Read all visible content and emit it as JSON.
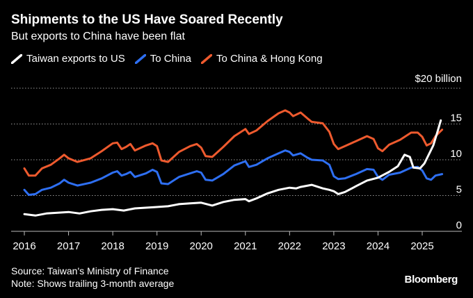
{
  "header": {
    "title": "Shipments to the US Have Soared Recently",
    "subtitle": "But exports to China have been flat"
  },
  "footer": {
    "source": "Source: Taiwan's Ministry of Finance",
    "note": "Note: Shows trailing 3-month average",
    "brand": "Bloomberg"
  },
  "chart_data": {
    "type": "line",
    "unit_label": "$20 billion",
    "ylim": [
      0,
      20
    ],
    "yticks": [
      {
        "value": 20,
        "label": "$20 billion"
      },
      {
        "value": 15,
        "label": "15"
      },
      {
        "value": 10,
        "label": "10"
      },
      {
        "value": 5,
        "label": "5"
      },
      {
        "value": 0,
        "label": "0"
      }
    ],
    "xlim": [
      2016,
      2025.9
    ],
    "xticks": [
      {
        "value": 2016,
        "label": "2016"
      },
      {
        "value": 2017,
        "label": "2017"
      },
      {
        "value": 2018,
        "label": "2018"
      },
      {
        "value": 2019,
        "label": "2019"
      },
      {
        "value": 2020,
        "label": "2020"
      },
      {
        "value": 2021,
        "label": "2021"
      },
      {
        "value": 2022,
        "label": "2022"
      },
      {
        "value": 2023,
        "label": "2023"
      },
      {
        "value": 2024,
        "label": "2024"
      },
      {
        "value": 2025,
        "label": "2025"
      }
    ],
    "grid": true,
    "legend_position": "top-left",
    "series": [
      {
        "name": "Taiwan exports to US",
        "color": "#ffffff",
        "points": [
          [
            2016.0,
            2.4
          ],
          [
            2016.25,
            2.2
          ],
          [
            2016.5,
            2.5
          ],
          [
            2016.75,
            2.6
          ],
          [
            2017.0,
            2.7
          ],
          [
            2017.25,
            2.5
          ],
          [
            2017.5,
            2.8
          ],
          [
            2017.75,
            3.0
          ],
          [
            2018.0,
            3.1
          ],
          [
            2018.25,
            2.9
          ],
          [
            2018.5,
            3.2
          ],
          [
            2018.75,
            3.3
          ],
          [
            2019.0,
            3.4
          ],
          [
            2019.25,
            3.5
          ],
          [
            2019.5,
            3.8
          ],
          [
            2019.75,
            3.9
          ],
          [
            2020.0,
            4.0
          ],
          [
            2020.25,
            3.6
          ],
          [
            2020.5,
            4.1
          ],
          [
            2020.75,
            4.4
          ],
          [
            2021.0,
            4.5
          ],
          [
            2021.08,
            4.2
          ],
          [
            2021.25,
            4.6
          ],
          [
            2021.5,
            5.3
          ],
          [
            2021.75,
            5.8
          ],
          [
            2022.0,
            6.1
          ],
          [
            2022.15,
            6.0
          ],
          [
            2022.25,
            6.2
          ],
          [
            2022.5,
            6.5
          ],
          [
            2022.75,
            6.0
          ],
          [
            2022.9,
            5.8
          ],
          [
            2023.0,
            5.6
          ],
          [
            2023.1,
            5.2
          ],
          [
            2023.25,
            5.5
          ],
          [
            2023.5,
            6.3
          ],
          [
            2023.75,
            7.1
          ],
          [
            2024.0,
            7.5
          ],
          [
            2024.25,
            8.3
          ],
          [
            2024.45,
            9.1
          ],
          [
            2024.6,
            10.7
          ],
          [
            2024.72,
            10.4
          ],
          [
            2024.8,
            8.9
          ],
          [
            2024.95,
            8.8
          ],
          [
            2025.05,
            9.5
          ],
          [
            2025.25,
            12.0
          ],
          [
            2025.35,
            14.0
          ],
          [
            2025.42,
            15.5
          ]
        ]
      },
      {
        "name": "To China",
        "color": "#2e6ff2",
        "points": [
          [
            2016.0,
            5.8
          ],
          [
            2016.1,
            5.1
          ],
          [
            2016.25,
            5.2
          ],
          [
            2016.4,
            5.8
          ],
          [
            2016.6,
            6.1
          ],
          [
            2016.8,
            6.7
          ],
          [
            2016.9,
            7.2
          ],
          [
            2017.0,
            6.8
          ],
          [
            2017.2,
            6.4
          ],
          [
            2017.5,
            6.8
          ],
          [
            2017.75,
            7.4
          ],
          [
            2018.0,
            8.2
          ],
          [
            2018.1,
            8.4
          ],
          [
            2018.2,
            7.8
          ],
          [
            2018.3,
            8.0
          ],
          [
            2018.4,
            8.3
          ],
          [
            2018.5,
            7.6
          ],
          [
            2018.75,
            8.1
          ],
          [
            2018.9,
            8.6
          ],
          [
            2019.0,
            8.3
          ],
          [
            2019.1,
            6.7
          ],
          [
            2019.25,
            6.6
          ],
          [
            2019.5,
            7.6
          ],
          [
            2019.75,
            8.1
          ],
          [
            2019.9,
            8.4
          ],
          [
            2020.0,
            8.2
          ],
          [
            2020.1,
            7.2
          ],
          [
            2020.25,
            7.1
          ],
          [
            2020.5,
            8.0
          ],
          [
            2020.75,
            9.2
          ],
          [
            2021.0,
            9.8
          ],
          [
            2021.08,
            9.0
          ],
          [
            2021.25,
            9.3
          ],
          [
            2021.5,
            10.2
          ],
          [
            2021.75,
            10.9
          ],
          [
            2021.9,
            11.3
          ],
          [
            2022.0,
            11.1
          ],
          [
            2022.08,
            10.6
          ],
          [
            2022.25,
            10.9
          ],
          [
            2022.4,
            10.3
          ],
          [
            2022.5,
            10.0
          ],
          [
            2022.75,
            9.9
          ],
          [
            2022.9,
            9.3
          ],
          [
            2023.0,
            7.7
          ],
          [
            2023.1,
            7.3
          ],
          [
            2023.25,
            7.4
          ],
          [
            2023.5,
            8.0
          ],
          [
            2023.75,
            8.7
          ],
          [
            2023.9,
            8.6
          ],
          [
            2024.0,
            7.6
          ],
          [
            2024.1,
            7.2
          ],
          [
            2024.25,
            7.9
          ],
          [
            2024.5,
            8.2
          ],
          [
            2024.75,
            8.9
          ],
          [
            2024.9,
            9.0
          ],
          [
            2025.0,
            8.5
          ],
          [
            2025.1,
            7.4
          ],
          [
            2025.2,
            7.2
          ],
          [
            2025.3,
            7.8
          ],
          [
            2025.45,
            8.0
          ]
        ]
      },
      {
        "name": "To China & Hong Kong",
        "color": "#ee5a2e",
        "points": [
          [
            2016.0,
            8.8
          ],
          [
            2016.1,
            7.8
          ],
          [
            2016.25,
            7.8
          ],
          [
            2016.4,
            8.8
          ],
          [
            2016.6,
            9.3
          ],
          [
            2016.8,
            10.2
          ],
          [
            2016.9,
            10.7
          ],
          [
            2017.0,
            10.2
          ],
          [
            2017.2,
            9.7
          ],
          [
            2017.5,
            10.2
          ],
          [
            2017.75,
            11.2
          ],
          [
            2018.0,
            12.3
          ],
          [
            2018.1,
            12.4
          ],
          [
            2018.2,
            11.5
          ],
          [
            2018.3,
            11.8
          ],
          [
            2018.4,
            12.2
          ],
          [
            2018.5,
            11.3
          ],
          [
            2018.75,
            12.0
          ],
          [
            2018.9,
            12.3
          ],
          [
            2019.0,
            11.9
          ],
          [
            2019.1,
            9.9
          ],
          [
            2019.25,
            9.7
          ],
          [
            2019.5,
            11.1
          ],
          [
            2019.75,
            11.9
          ],
          [
            2019.9,
            12.2
          ],
          [
            2020.0,
            11.7
          ],
          [
            2020.1,
            10.5
          ],
          [
            2020.25,
            10.4
          ],
          [
            2020.5,
            11.8
          ],
          [
            2020.75,
            13.3
          ],
          [
            2021.0,
            14.3
          ],
          [
            2021.08,
            13.6
          ],
          [
            2021.25,
            14.1
          ],
          [
            2021.5,
            15.4
          ],
          [
            2021.75,
            16.5
          ],
          [
            2021.9,
            16.9
          ],
          [
            2022.0,
            16.6
          ],
          [
            2022.08,
            16.1
          ],
          [
            2022.25,
            16.6
          ],
          [
            2022.4,
            15.8
          ],
          [
            2022.5,
            15.3
          ],
          [
            2022.75,
            15.1
          ],
          [
            2022.9,
            13.9
          ],
          [
            2023.0,
            12.2
          ],
          [
            2023.1,
            11.5
          ],
          [
            2023.25,
            11.9
          ],
          [
            2023.5,
            12.6
          ],
          [
            2023.75,
            13.3
          ],
          [
            2023.9,
            12.9
          ],
          [
            2024.0,
            11.6
          ],
          [
            2024.1,
            11.2
          ],
          [
            2024.25,
            12.1
          ],
          [
            2024.5,
            12.8
          ],
          [
            2024.75,
            13.8
          ],
          [
            2024.9,
            13.8
          ],
          [
            2025.0,
            13.2
          ],
          [
            2025.1,
            12.0
          ],
          [
            2025.2,
            12.3
          ],
          [
            2025.3,
            13.3
          ],
          [
            2025.45,
            14.2
          ]
        ]
      }
    ]
  }
}
